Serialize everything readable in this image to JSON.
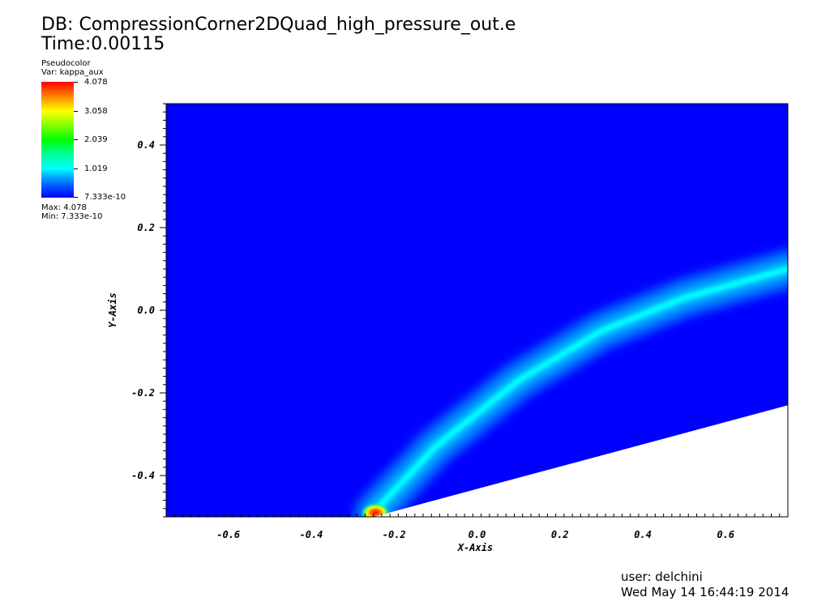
{
  "header": {
    "db_line": "DB: CompressionCorner2DQuad_high_pressure_out.e",
    "time_line": "Time:0.00115"
  },
  "legend": {
    "plot_type": "Pseudocolor",
    "var_line": "Var: kappa_aux",
    "tick_labels": [
      "4.078",
      "3.058",
      "2.039",
      "1.019",
      "7.333e-10"
    ],
    "tick_values": [
      4.078,
      3.058,
      2.039,
      1.019,
      7.333e-10
    ],
    "max_line": "Max: 4.078",
    "min_line": "Min: 7.333e-10",
    "colormap": [
      "#0000ff",
      "#00ffff",
      "#00ff00",
      "#ffff00",
      "#ff0000"
    ]
  },
  "footer": {
    "user_line": "user: delchini",
    "date_line": "Wed May 14 16:44:19 2014"
  },
  "chart_data": {
    "type": "heatmap",
    "variable": "kappa_aux",
    "xlabel": "X-Axis",
    "ylabel": "Y-Axis",
    "xlim": [
      -0.75,
      0.75
    ],
    "ylim": [
      -0.5,
      0.5
    ],
    "x_ticks": [
      -0.6,
      -0.4,
      -0.2,
      0.0,
      0.2,
      0.4,
      0.6
    ],
    "x_tick_labels": [
      "-0.6",
      "-0.4",
      "-0.2",
      "0.0",
      "0.2",
      "0.4",
      "0.6"
    ],
    "y_ticks": [
      -0.4,
      -0.2,
      0.0,
      0.2,
      0.4
    ],
    "y_tick_labels": [
      "-0.4",
      "-0.2",
      "0.0",
      "0.2",
      "0.4"
    ],
    "value_range": [
      7.333e-10,
      4.078
    ],
    "background_value": 0.0,
    "domain_boundary": {
      "wall_start": [
        -0.25,
        -0.5
      ],
      "wall_end": [
        0.75,
        -0.23
      ]
    },
    "shock_band": {
      "points": [
        [
          -0.25,
          -0.49
        ],
        [
          -0.1,
          -0.33
        ],
        [
          0.1,
          -0.17
        ],
        [
          0.3,
          -0.05
        ],
        [
          0.5,
          0.03
        ],
        [
          0.75,
          0.1
        ]
      ],
      "peak_value": 1.0
    },
    "hot_spot": {
      "x": -0.245,
      "y": -0.49,
      "value": 4.078
    }
  }
}
